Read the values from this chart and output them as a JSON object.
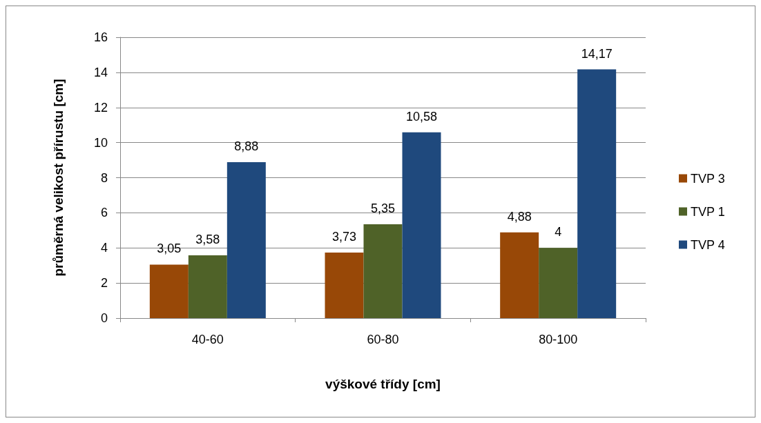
{
  "chart_data": {
    "type": "bar",
    "xlabel": "výškové třídy [cm]",
    "ylabel": "průměrná velikost přírustu [cm]",
    "categories": [
      "40-60",
      "60-80",
      "80-100"
    ],
    "series": [
      {
        "name": "TVP 3",
        "color": "#984807",
        "values": [
          3.05,
          3.73,
          4.88
        ],
        "value_labels": [
          "3,05",
          "3,73",
          "4,88"
        ]
      },
      {
        "name": "TVP 1",
        "color": "#4f6228",
        "values": [
          3.58,
          5.35,
          4
        ],
        "value_labels": [
          "3,58",
          "5,35",
          "4"
        ]
      },
      {
        "name": "TVP 4",
        "color": "#1f497d",
        "values": [
          8.88,
          10.58,
          14.17
        ],
        "value_labels": [
          "8,88",
          "10,58",
          "14,17"
        ]
      }
    ],
    "ylim": [
      0,
      16
    ],
    "yticks": [
      0,
      2,
      4,
      6,
      8,
      10,
      12,
      14,
      16
    ],
    "grid": "y",
    "legend": "right"
  }
}
